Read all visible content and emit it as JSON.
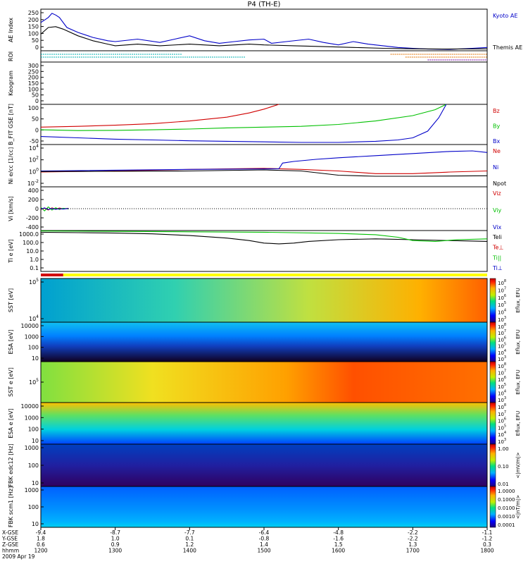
{
  "title": "P4 (TH-E)",
  "footer": {
    "row_labels": [
      "X-GSE",
      "Y-GSE",
      "Z-GSE",
      "hhmm",
      "2009 Apr 19"
    ],
    "columns": [
      [
        "-9.4",
        "1.8",
        "0.6",
        "1200"
      ],
      [
        "-8.7",
        "1.0",
        "0.9",
        "1300"
      ],
      [
        "-7.7",
        "0.1",
        "1.2",
        "1400"
      ],
      [
        "-6.4",
        "-0.8",
        "1.4",
        "1500"
      ],
      [
        "-4.8",
        "-1.6",
        "1.5",
        "1600"
      ],
      [
        "-2.2",
        "-2.2",
        "1.3",
        "1700"
      ],
      [
        "-1.1",
        "-1.2",
        "0.3",
        "1800"
      ]
    ]
  },
  "colors": {
    "blue": "#0000c8",
    "red": "#d00000",
    "green": "#00c000",
    "black": "#000000",
    "roi_cyan": "#00b0b0",
    "roi_orange": "#e07000",
    "roi_purple": "#7000a0",
    "bar_red": "#d00000",
    "bar_yellow": "#ffff00"
  },
  "chart_data": [
    {
      "type": "line",
      "ylabel": "AE Index",
      "ylim": [
        0,
        250
      ],
      "yticks": [
        "250",
        "200",
        "150",
        "100",
        "50",
        "0"
      ],
      "x": [
        1200,
        1300,
        1400,
        1500,
        1600,
        1700,
        1800
      ],
      "series": [
        {
          "name": "Kyoto AE",
          "color": "blue",
          "values": [
            [
              1200,
              170
            ],
            [
              1210,
              200
            ],
            [
              1215,
              225
            ],
            [
              1220,
              215
            ],
            [
              1225,
              200
            ],
            [
              1235,
              140
            ],
            [
              1250,
              110
            ],
            [
              1270,
              80
            ],
            [
              1290,
              60
            ],
            [
              1300,
              55
            ],
            [
              1330,
              70
            ],
            [
              1360,
              50
            ],
            [
              1380,
              70
            ],
            [
              1400,
              90
            ],
            [
              1420,
              60
            ],
            [
              1440,
              45
            ],
            [
              1460,
              55
            ],
            [
              1480,
              65
            ],
            [
              1500,
              70
            ],
            [
              1510,
              45
            ],
            [
              1530,
              55
            ],
            [
              1560,
              70
            ],
            [
              1580,
              50
            ],
            [
              1600,
              35
            ],
            [
              1620,
              55
            ],
            [
              1640,
              40
            ],
            [
              1660,
              30
            ],
            [
              1680,
              20
            ],
            [
              1700,
              15
            ],
            [
              1720,
              10
            ],
            [
              1750,
              8
            ],
            [
              1780,
              15
            ],
            [
              1800,
              20
            ]
          ]
        },
        {
          "name": "Themis AE",
          "color": "black",
          "values": [
            [
              1200,
              100
            ],
            [
              1210,
              140
            ],
            [
              1220,
              145
            ],
            [
              1230,
              130
            ],
            [
              1250,
              90
            ],
            [
              1270,
              60
            ],
            [
              1290,
              40
            ],
            [
              1300,
              30
            ],
            [
              1330,
              40
            ],
            [
              1360,
              30
            ],
            [
              1400,
              40
            ],
            [
              1440,
              30
            ],
            [
              1480,
              40
            ],
            [
              1500,
              35
            ],
            [
              1540,
              30
            ],
            [
              1580,
              25
            ],
            [
              1620,
              20
            ],
            [
              1660,
              15
            ],
            [
              1700,
              12
            ],
            [
              1740,
              10
            ],
            [
              1800,
              12
            ]
          ]
        }
      ]
    },
    {
      "type": "line",
      "ylabel": "ROI",
      "series": [
        {
          "name": "",
          "color": "roi_cyan",
          "values": [
            [
              1200,
              1
            ],
            [
              1390,
              1
            ]
          ]
        },
        {
          "name": "",
          "color": "roi_cyan",
          "values": [
            [
              1200,
              2
            ],
            [
              1475,
              2
            ]
          ]
        },
        {
          "name": "",
          "color": "roi_orange",
          "values": [
            [
              1670,
              1
            ],
            [
              1800,
              1
            ]
          ]
        },
        {
          "name": "",
          "color": "roi_orange",
          "values": [
            [
              1690,
              2
            ],
            [
              1800,
              2
            ]
          ]
        },
        {
          "name": "",
          "color": "roi_purple",
          "values": [
            [
              1720,
              3
            ],
            [
              1800,
              3
            ]
          ]
        }
      ]
    },
    {
      "type": "heatmap",
      "ylabel": "Keogram",
      "ylim": [
        0,
        300
      ],
      "yticks": [
        "300",
        "250",
        "200",
        "150",
        "100",
        "50",
        "0"
      ],
      "values": []
    },
    {
      "type": "line",
      "ylabel": "B_FIT GSE [nT]",
      "ylim": [
        -50,
        100
      ],
      "yticks": [
        "100",
        "50",
        "0",
        "-50"
      ],
      "series": [
        {
          "name": "Bz",
          "color": "red",
          "values": [
            [
              1200,
              15
            ],
            [
              1250,
              18
            ],
            [
              1300,
              22
            ],
            [
              1350,
              28
            ],
            [
              1400,
              38
            ],
            [
              1450,
              52
            ],
            [
              1480,
              68
            ],
            [
              1500,
              82
            ],
            [
              1520,
              100
            ]
          ]
        },
        {
          "name": "By",
          "color": "green",
          "values": [
            [
              1200,
              5
            ],
            [
              1250,
              2
            ],
            [
              1300,
              3
            ],
            [
              1350,
              5
            ],
            [
              1400,
              8
            ],
            [
              1450,
              12
            ],
            [
              1500,
              15
            ],
            [
              1550,
              18
            ],
            [
              1600,
              25
            ],
            [
              1650,
              38
            ],
            [
              1700,
              58
            ],
            [
              1730,
              80
            ],
            [
              1745,
              100
            ]
          ]
        },
        {
          "name": "Bx",
          "color": "blue",
          "values": [
            [
              1200,
              -20
            ],
            [
              1250,
              -25
            ],
            [
              1300,
              -30
            ],
            [
              1350,
              -33
            ],
            [
              1400,
              -36
            ],
            [
              1450,
              -38
            ],
            [
              1500,
              -40
            ],
            [
              1550,
              -42
            ],
            [
              1600,
              -42
            ],
            [
              1650,
              -38
            ],
            [
              1680,
              -33
            ],
            [
              1700,
              -25
            ],
            [
              1720,
              0
            ],
            [
              1735,
              50
            ],
            [
              1745,
              100
            ]
          ]
        }
      ]
    },
    {
      "type": "line",
      "ylabel": "Ni e/cc [1/cc]",
      "yscale": "log",
      "ylim": [
        -3,
        5
      ],
      "yticks": [
        "10^4",
        "10^2",
        "10^0",
        "10^-2"
      ],
      "series": [
        {
          "name": "Ne",
          "color": "red",
          "values": [
            [
              1200,
              -0.2
            ],
            [
              1300,
              0.0
            ],
            [
              1400,
              0.3
            ],
            [
              1500,
              0.5
            ],
            [
              1550,
              0.3
            ],
            [
              1600,
              0.0
            ],
            [
              1650,
              -0.5
            ],
            [
              1700,
              -0.5
            ],
            [
              1750,
              -0.2
            ],
            [
              1800,
              0.0
            ]
          ]
        },
        {
          "name": "Ni",
          "color": "blue",
          "values": [
            [
              1200,
              0.0
            ],
            [
              1400,
              0.3
            ],
            [
              1520,
              0.4
            ],
            [
              1525,
              1.5
            ],
            [
              1540,
              1.8
            ],
            [
              1570,
              2.2
            ],
            [
              1600,
              2.5
            ],
            [
              1650,
              2.9
            ],
            [
              1700,
              3.3
            ],
            [
              1750,
              3.7
            ],
            [
              1780,
              3.8
            ],
            [
              1800,
              3.5
            ]
          ]
        },
        {
          "name": "Npot",
          "color": "black",
          "values": [
            [
              1200,
              -0.1
            ],
            [
              1400,
              0.0
            ],
            [
              1500,
              0.2
            ],
            [
              1550,
              0.0
            ],
            [
              1600,
              -0.8
            ],
            [
              1650,
              -1.0
            ],
            [
              1700,
              -1.0
            ],
            [
              1800,
              -0.9
            ]
          ]
        }
      ]
    },
    {
      "type": "line",
      "ylabel": "Vi [km/s]",
      "ylim": [
        -500,
        500
      ],
      "yticks": [
        "400",
        "200",
        "0",
        "-200",
        "-400"
      ],
      "series": [
        {
          "name": "Viz",
          "color": "red",
          "values": [
            [
              1200,
              -20
            ],
            [
              1205,
              10
            ],
            [
              1210,
              -30
            ],
            [
              1215,
              20
            ],
            [
              1220,
              -10
            ],
            [
              1225,
              15
            ],
            [
              1230,
              -5
            ],
            [
              1237,
              10
            ]
          ]
        },
        {
          "name": "Viy",
          "color": "green",
          "values": [
            [
              1200,
              30
            ],
            [
              1205,
              -50
            ],
            [
              1210,
              40
            ],
            [
              1215,
              -30
            ],
            [
              1220,
              20
            ],
            [
              1225,
              -20
            ],
            [
              1230,
              10
            ],
            [
              1237,
              -5
            ]
          ]
        },
        {
          "name": "Vix",
          "color": "blue",
          "values": [
            [
              1200,
              -10
            ],
            [
              1205,
              20
            ],
            [
              1210,
              -20
            ],
            [
              1215,
              5
            ],
            [
              1220,
              -15
            ],
            [
              1225,
              0
            ],
            [
              1230,
              -10
            ],
            [
              1237,
              5
            ]
          ]
        }
      ]
    },
    {
      "type": "line",
      "ylabel": "Ti e [eV]",
      "yscale": "log",
      "ylim": [
        -1.3,
        3.6
      ],
      "yticks": [
        "1000.0",
        "100.0",
        "10.0",
        "1.0",
        "0.1"
      ],
      "series": [
        {
          "name": "Teli",
          "color": "black",
          "values": [
            [
              1200,
              3.4
            ],
            [
              1250,
              3.35
            ],
            [
              1300,
              3.3
            ],
            [
              1350,
              3.2
            ],
            [
              1400,
              3.0
            ],
            [
              1450,
              2.7
            ],
            [
              1480,
              2.4
            ],
            [
              1500,
              2.1
            ],
            [
              1520,
              2.0
            ],
            [
              1540,
              2.1
            ],
            [
              1560,
              2.3
            ],
            [
              1600,
              2.5
            ],
            [
              1650,
              2.6
            ],
            [
              1700,
              2.5
            ],
            [
              1750,
              2.4
            ],
            [
              1800,
              2.3
            ]
          ]
        },
        {
          "name": "Te⊥",
          "color": "red",
          "values": []
        },
        {
          "name": "Ti||",
          "color": "green",
          "values": [
            [
              1200,
              3.55
            ],
            [
              1300,
              3.5
            ],
            [
              1400,
              3.45
            ],
            [
              1500,
              3.4
            ],
            [
              1600,
              3.25
            ],
            [
              1650,
              3.1
            ],
            [
              1680,
              2.8
            ],
            [
              1700,
              2.4
            ],
            [
              1730,
              2.3
            ],
            [
              1760,
              2.5
            ],
            [
              1800,
              2.6
            ]
          ]
        },
        {
          "name": "Ti⊥",
          "color": "blue",
          "values": []
        }
      ]
    },
    {
      "type": "heatmap",
      "ylabel": "SST [eV]",
      "colorbar": {
        "label": "Eflux, EFU",
        "ticks": [
          "10^8",
          "10^7",
          "10^6",
          "10^5",
          "10^4",
          "10^3"
        ]
      },
      "yticks": [
        "10^5",
        "10^4"
      ],
      "values": []
    },
    {
      "type": "heatmap",
      "ylabel": "ESA [eV]",
      "colorbar": {
        "label": "Eflux, EFU",
        "ticks": [
          "10^8",
          "10^7",
          "10^6",
          "10^5",
          "10^4",
          "10^3"
        ]
      },
      "yticks": [
        "10000",
        "1000",
        "100",
        "10"
      ],
      "values": []
    },
    {
      "type": "heatmap",
      "ylabel": "SST e [eV]",
      "colorbar": {
        "label": "Eflux, EFU",
        "ticks": [
          "10^8",
          "10^7",
          "10^6",
          "10^5",
          "10^4",
          "10^3"
        ]
      },
      "yticks": [
        "10^5"
      ],
      "values": []
    },
    {
      "type": "heatmap",
      "ylabel": "ESA e [eV]",
      "colorbar": {
        "label": "Eflux, EFU",
        "ticks": [
          "10^8",
          "10^7",
          "10^6",
          "10^5",
          "10^4",
          "10^3"
        ]
      },
      "yticks": [
        "10000",
        "1000",
        "100",
        "10"
      ],
      "values": []
    },
    {
      "type": "heatmap",
      "ylabel": "FBK edc12 [Hz]",
      "colorbar": {
        "label": "<|mV/m|>",
        "ticks": [
          "1.00",
          "0.10",
          "0.01"
        ]
      },
      "yticks": [
        "1000",
        "100",
        "10"
      ],
      "values": []
    },
    {
      "type": "heatmap",
      "ylabel": "FBK scm1 [Hz]",
      "colorbar": {
        "label": "<|nT/m|>",
        "ticks": [
          "1.0000",
          "0.1000",
          "0.0100",
          "0.0010",
          "0.0001"
        ]
      },
      "yticks": [
        "1000",
        "100",
        "10"
      ],
      "values": []
    }
  ]
}
